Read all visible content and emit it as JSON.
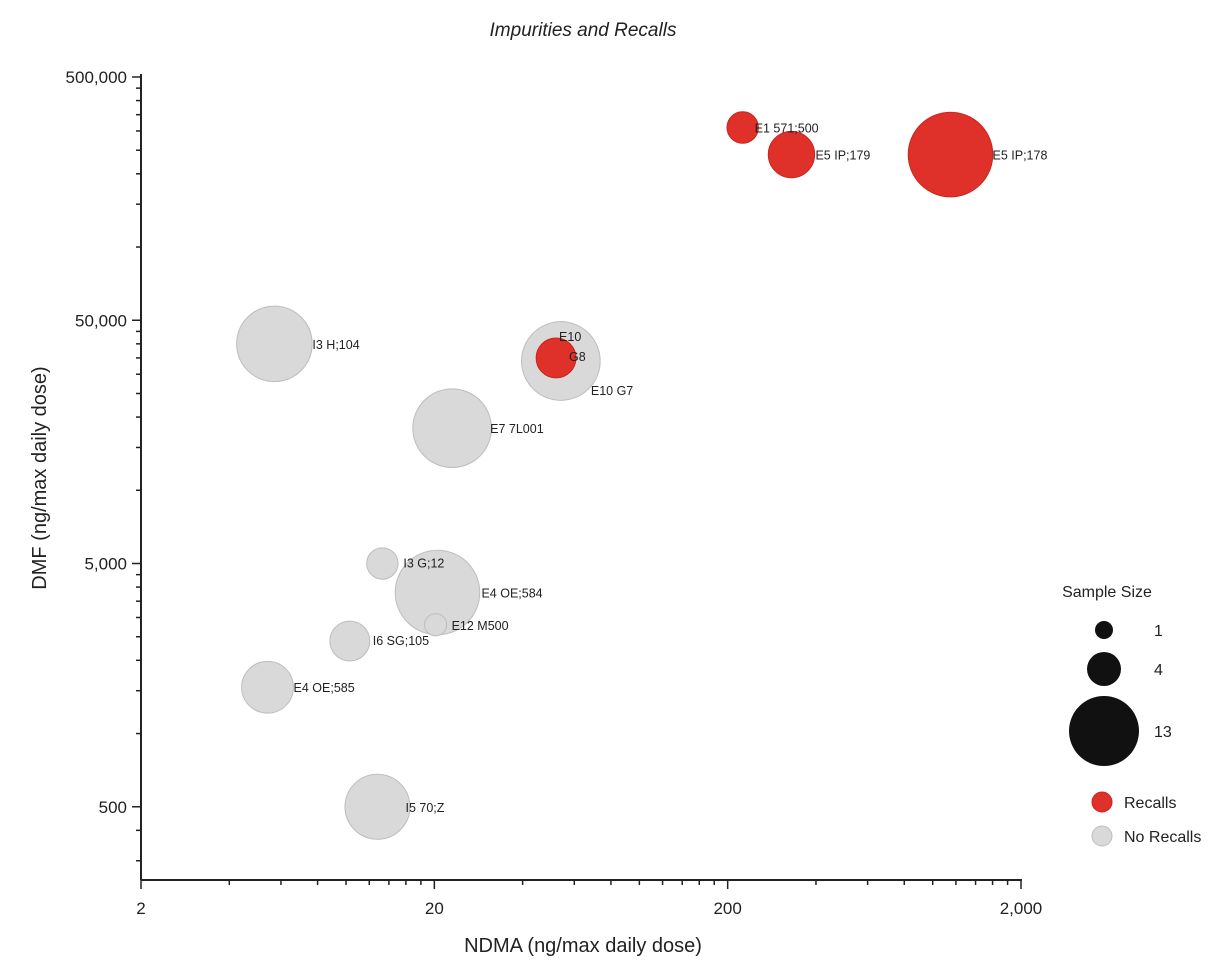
{
  "chart_data": {
    "type": "scatter",
    "title": "Impurities and Recalls",
    "xlabel": "NDMA (ng/max daily dose)",
    "ylabel": "DMF (ng/max daily dose)",
    "x_scale": "log",
    "y_scale": "log",
    "xlim": [
      2,
      2000
    ],
    "ylim": [
      250,
      500000
    ],
    "x_ticks": [
      2,
      20,
      200,
      2000
    ],
    "x_tick_labels": [
      "2",
      "20",
      "200",
      "2,000"
    ],
    "y_ticks": [
      500,
      5000,
      50000,
      500000
    ],
    "y_tick_labels": [
      "500",
      "5,000",
      "50,000",
      "500,000"
    ],
    "grid": false,
    "legend_position": "right",
    "size_legend": {
      "title": "Sample Size",
      "entries": [
        {
          "label": "1",
          "value": 1
        },
        {
          "label": "4",
          "value": 4
        },
        {
          "label": "13",
          "value": 13
        }
      ]
    },
    "color_legend": [
      {
        "label": "Recalls",
        "color": "#e0302a"
      },
      {
        "label": "No Recalls",
        "color": "#d9d9d9"
      }
    ],
    "series": [
      {
        "name": "Recalls",
        "color": "#e0302a",
        "points": [
          {
            "label": "E1 571;500",
            "x": 225,
            "y": 310000,
            "size": 1
          },
          {
            "label": "E5 IP;179",
            "x": 330,
            "y": 240000,
            "size": 3
          },
          {
            "label": "E5 IP;178",
            "x": 1150,
            "y": 240000,
            "size": 13
          },
          {
            "label": "E10 G8",
            "x": 52,
            "y": 35000,
            "size": 2
          }
        ]
      },
      {
        "name": "No Recalls",
        "color": "#d9d9d9",
        "points": [
          {
            "label": "I3 H;104",
            "x": 5.7,
            "y": 40000,
            "size": 10
          },
          {
            "label": "E10 G7",
            "x": 54,
            "y": 34000,
            "size": 11
          },
          {
            "label": "E7 7L001",
            "x": 23,
            "y": 18000,
            "size": 11
          },
          {
            "label": "I3 G;12",
            "x": 13.3,
            "y": 5000,
            "size": 1
          },
          {
            "label": "E4 OE;584",
            "x": 20.5,
            "y": 3800,
            "size": 13
          },
          {
            "label": "E12 M500",
            "x": 20.2,
            "y": 2800,
            "size": 0.3
          },
          {
            "label": "I6 SG;105",
            "x": 10.3,
            "y": 2400,
            "size": 2
          },
          {
            "label": "E4 OE;585",
            "x": 5.4,
            "y": 1550,
            "size": 4
          },
          {
            "label": "I5 70;Z",
            "x": 12.8,
            "y": 500,
            "size": 7
          }
        ]
      }
    ]
  }
}
